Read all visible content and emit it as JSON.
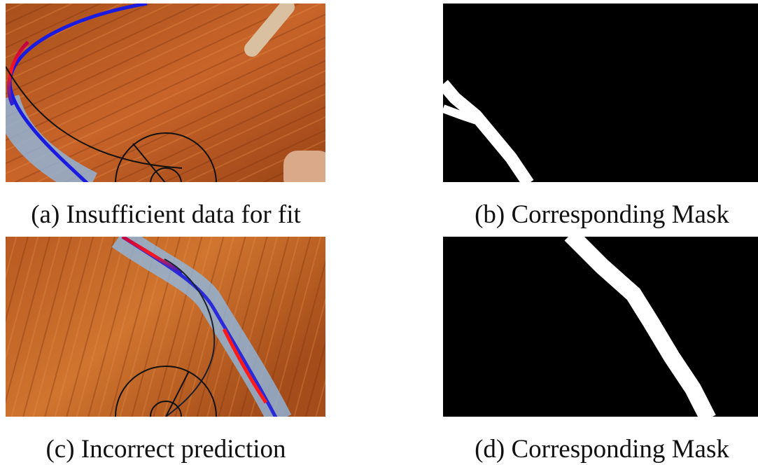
{
  "panels": [
    {
      "caption": "(a) Insufficient data for fit"
    },
    {
      "caption": "(b) Corresponding Mask"
    },
    {
      "caption": "(c) Incorrect prediction"
    },
    {
      "caption": "(d) Corresponding Mask"
    }
  ]
}
